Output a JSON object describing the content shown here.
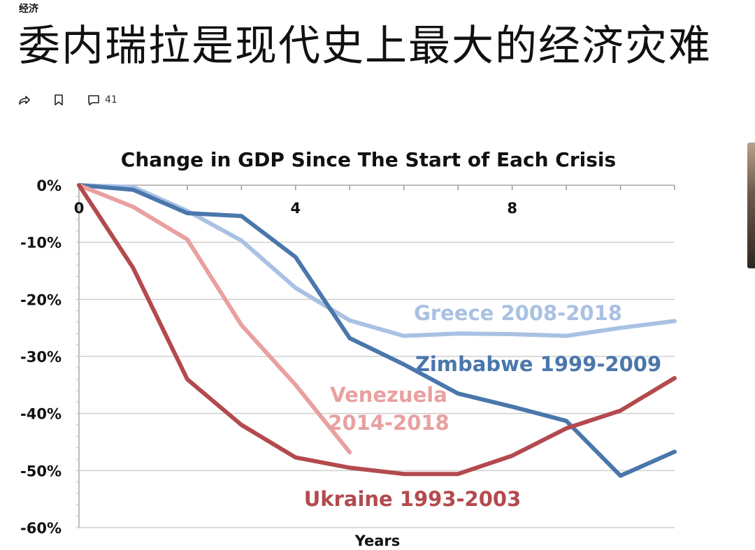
{
  "article": {
    "category": "经济",
    "title": "委内瑞拉是现代史上最大的经济灾难",
    "comment_count": "41"
  },
  "icons": {
    "share": "share-icon",
    "bookmark": "bookmark-icon",
    "comment": "comment-icon"
  },
  "chart_data": {
    "type": "line",
    "title": "Change in GDP Since The Start of Each Crisis",
    "xlabel": "Years",
    "ylabel": "",
    "xlim": [
      0,
      11
    ],
    "ylim": [
      -60,
      0
    ],
    "x_ticks": [
      0,
      4,
      8
    ],
    "y_ticks": [
      0,
      -10,
      -20,
      -30,
      -40,
      -50,
      -60
    ],
    "y_tick_labels": [
      "0%",
      "-10%",
      "-20%",
      "-30%",
      "-40%",
      "-50%",
      "-60%"
    ],
    "grid": true,
    "series": [
      {
        "name": "Greece 2008-2018",
        "color": "#a9c1e3",
        "x": [
          0,
          1,
          2,
          3,
          4,
          5,
          6,
          7,
          8,
          9,
          10,
          11
        ],
        "values": [
          0,
          -0.3,
          -4.5,
          -9.7,
          -18,
          -23.7,
          -26.4,
          -26,
          -26.1,
          -26.4,
          -25,
          -23.8
        ]
      },
      {
        "name": "Zimbabwe 1999-2009",
        "color": "#4a77ab",
        "x": [
          0,
          1,
          2,
          3,
          4,
          5,
          6,
          7,
          8,
          9,
          10,
          11
        ],
        "values": [
          0,
          -0.8,
          -4.9,
          -5.4,
          -12.6,
          -26.8,
          -31.4,
          -36.5,
          -38.8,
          -41.3,
          -50.9,
          -46.7
        ]
      },
      {
        "name": "Venezuela 2014-2018",
        "label_lines": [
          "Venezuela",
          "2014-2018"
        ],
        "color": "#e9a0a0",
        "x": [
          0,
          1,
          2,
          3,
          4,
          5
        ],
        "values": [
          0,
          -3.8,
          -9.5,
          -24.5,
          -35,
          -46.8
        ]
      },
      {
        "name": "Ukraine 1993-2003",
        "color": "#b34a4e",
        "x": [
          0,
          1,
          2,
          3,
          4,
          5,
          6,
          7,
          8,
          9,
          10,
          11
        ],
        "values": [
          0,
          -14.5,
          -34,
          -42,
          -47.7,
          -49.5,
          -50.6,
          -50.6,
          -47.4,
          -42.6,
          -39.5,
          -33.8
        ]
      }
    ]
  }
}
